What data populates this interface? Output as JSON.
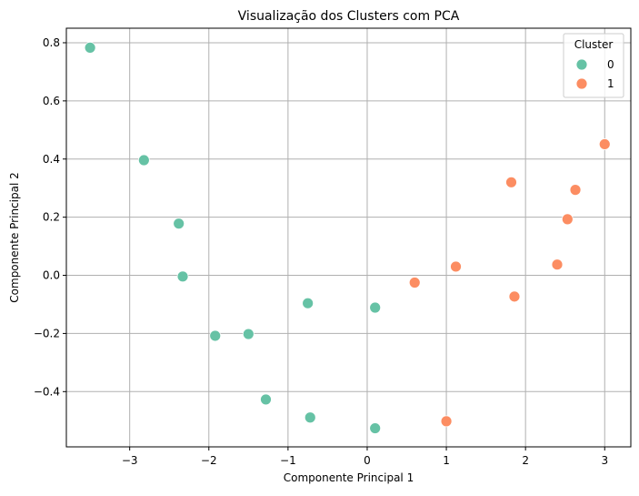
{
  "chart_data": {
    "type": "scatter",
    "title": "Visualização dos Clusters com PCA",
    "xlabel": "Componente Principal 1",
    "ylabel": "Componente Principal 2",
    "xlim": [
      -3.8,
      3.33
    ],
    "ylim": [
      -0.59,
      0.85
    ],
    "xticks": [
      -3,
      -2,
      -1,
      0,
      1,
      2,
      3
    ],
    "yticks": [
      -0.4,
      -0.2,
      0.0,
      0.2,
      0.4,
      0.6,
      0.8
    ],
    "xtick_labels": [
      "−3",
      "−2",
      "−1",
      "0",
      "1",
      "2",
      "3"
    ],
    "ytick_labels": [
      "−0.4",
      "−0.2",
      "0.0",
      "0.2",
      "0.4",
      "0.6",
      "0.8"
    ],
    "grid": true,
    "legend": {
      "title": "Cluster",
      "position": "top-right"
    },
    "series": [
      {
        "name": "0",
        "color": "#66c2a5",
        "points": [
          [
            -3.5,
            0.783
          ],
          [
            -2.82,
            0.396
          ],
          [
            -2.38,
            0.178
          ],
          [
            -2.33,
            -0.004
          ],
          [
            -1.92,
            -0.208
          ],
          [
            -1.5,
            -0.202
          ],
          [
            -0.75,
            -0.096
          ],
          [
            0.1,
            -0.111
          ],
          [
            -1.28,
            -0.427
          ],
          [
            -0.72,
            -0.489
          ],
          [
            0.1,
            -0.526
          ]
        ]
      },
      {
        "name": "1",
        "color": "#fc8d62",
        "points": [
          [
            3.0,
            0.451
          ],
          [
            1.82,
            0.32
          ],
          [
            2.63,
            0.294
          ],
          [
            2.53,
            0.193
          ],
          [
            2.4,
            0.037
          ],
          [
            1.12,
            0.03
          ],
          [
            0.6,
            -0.025
          ],
          [
            1.86,
            -0.073
          ],
          [
            1.0,
            -0.502
          ]
        ]
      }
    ]
  }
}
